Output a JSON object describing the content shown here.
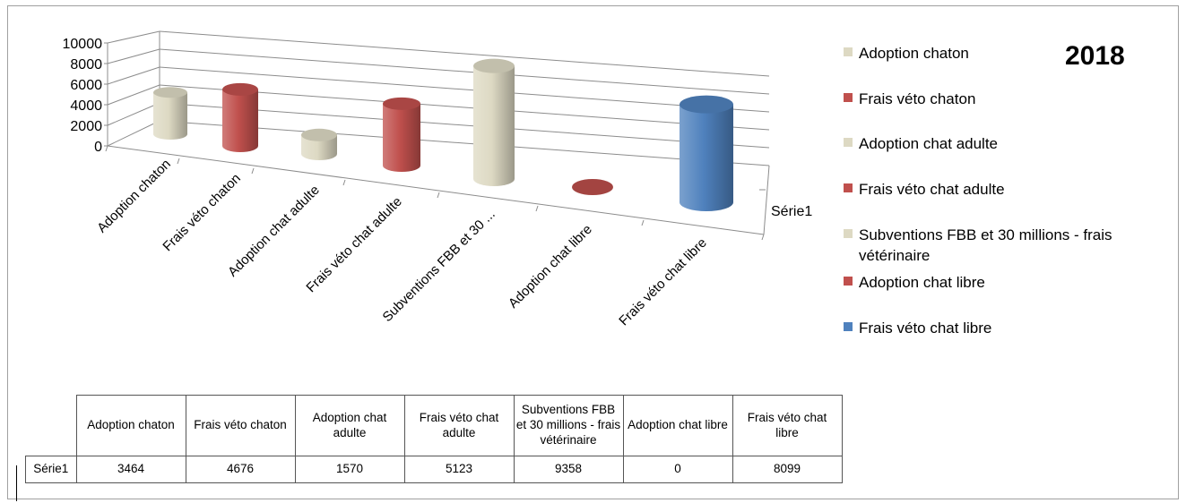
{
  "chart_data": {
    "type": "bar",
    "title": "2018",
    "categories": [
      "Adoption chaton",
      "Frais véto chaton",
      "Adoption chat adulte",
      "Frais véto chat adulte",
      "Subventions FBB et 30 millions - frais vétérinaire",
      "Adoption chat libre",
      "Frais véto chat libre"
    ],
    "category_axis_labels": [
      "Adoption chaton",
      "Frais véto chaton",
      "Adoption chat adulte",
      "Frais véto chat adulte",
      "Subventions FBB et 30 ...",
      "Adoption chat libre",
      "Frais véto chat libre"
    ],
    "series": [
      {
        "name": "Série1",
        "values": [
          3464,
          4676,
          1570,
          5123,
          9358,
          0,
          8099
        ]
      }
    ],
    "colors": [
      "#ddd9c3",
      "#c0504d",
      "#ddd9c3",
      "#c0504d",
      "#ddd9c3",
      "#c0504d",
      "#4f81bd"
    ],
    "ylim": [
      0,
      10000
    ],
    "yticks": [
      "10000",
      "8000",
      "6000",
      "4000",
      "2000",
      "0"
    ],
    "depth_axis_label": "Série1",
    "legend": {
      "position": "right",
      "entries": [
        "Adoption chaton",
        "Frais véto chaton",
        "Adoption chat adulte",
        "Frais véto chat adulte",
        "Subventions FBB et 30 millions - frais vétérinaire",
        "Adoption chat libre",
        "Frais véto chat libre"
      ]
    },
    "data_table": {
      "headers": [
        "Adoption chaton",
        "Frais véto chaton",
        "Adoption chat adulte",
        "Frais véto chat adulte",
        "Subventions FBB et 30 millions - frais vétérinaire",
        "Adoption chat libre",
        "Frais véto chat libre"
      ],
      "row_label": "Série1",
      "values": [
        "3464",
        "4676",
        "1570",
        "5123",
        "9358",
        "0",
        "8099"
      ]
    },
    "grid": true
  }
}
